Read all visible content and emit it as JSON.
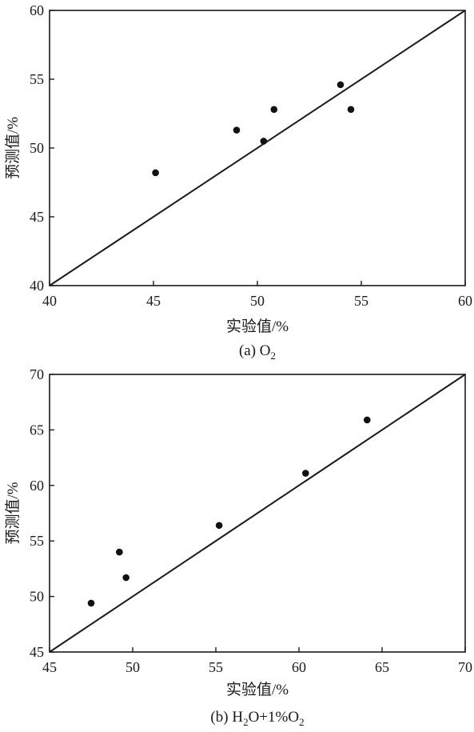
{
  "chart_data": [
    {
      "type": "scatter",
      "caption_prefix": "(a) ",
      "caption_main": "O",
      "caption_sub": "2",
      "caption_tail": "",
      "caption_sub2": "",
      "xlabel": "实验值/%",
      "ylabel": "预测值/%",
      "xlim": [
        40,
        60
      ],
      "ylim": [
        40,
        60
      ],
      "xticks": [
        40,
        45,
        50,
        55,
        60
      ],
      "yticks": [
        40,
        45,
        50,
        55,
        60
      ],
      "reference_line": [
        [
          40,
          40
        ],
        [
          60,
          60
        ]
      ],
      "grid": false,
      "points": [
        {
          "x": 45.1,
          "y": 48.2
        },
        {
          "x": 49.0,
          "y": 51.3
        },
        {
          "x": 50.3,
          "y": 50.5
        },
        {
          "x": 50.8,
          "y": 52.8
        },
        {
          "x": 54.0,
          "y": 54.6
        },
        {
          "x": 54.5,
          "y": 52.8
        }
      ]
    },
    {
      "type": "scatter",
      "caption_prefix": "(b) ",
      "caption_main": "H",
      "caption_sub": "2",
      "caption_tail": "O+1%O",
      "caption_sub2": "2",
      "xlabel": "实验值/%",
      "ylabel": "预测值/%",
      "xlim": [
        45,
        70
      ],
      "ylim": [
        45,
        70
      ],
      "xticks": [
        45,
        50,
        55,
        60,
        65,
        70
      ],
      "yticks": [
        45,
        50,
        55,
        60,
        65,
        70
      ],
      "reference_line": [
        [
          45,
          45
        ],
        [
          70,
          70
        ]
      ],
      "grid": false,
      "points": [
        {
          "x": 47.5,
          "y": 49.4
        },
        {
          "x": 49.2,
          "y": 54.0
        },
        {
          "x": 49.6,
          "y": 51.7
        },
        {
          "x": 55.2,
          "y": 56.4
        },
        {
          "x": 60.4,
          "y": 61.1
        },
        {
          "x": 64.1,
          "y": 65.9
        }
      ]
    }
  ]
}
